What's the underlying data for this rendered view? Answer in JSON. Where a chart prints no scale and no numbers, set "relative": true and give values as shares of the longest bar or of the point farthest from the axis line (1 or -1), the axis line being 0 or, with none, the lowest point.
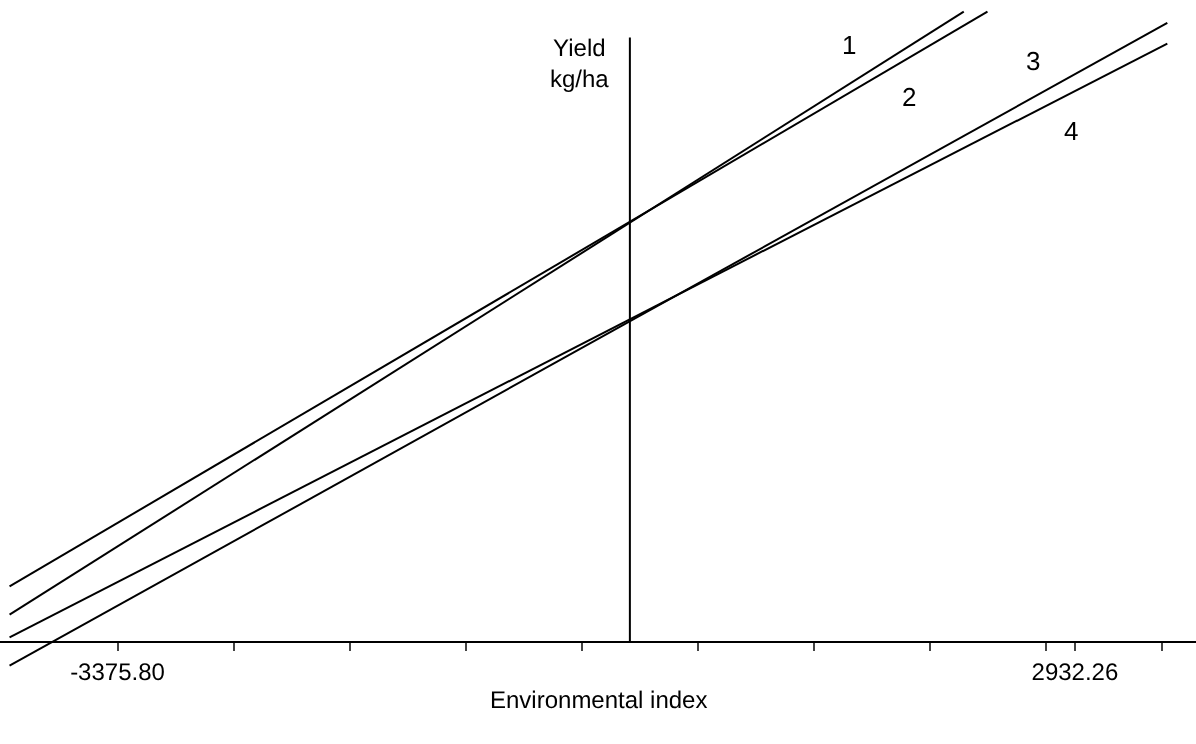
{
  "chart_data": {
    "type": "line",
    "relative": true,
    "xlabel": "Environmental index",
    "ylabel": "Yield\nkg/ha",
    "xlim": [
      -4150,
      3730
    ],
    "xticks": [
      {
        "value": -3375.8,
        "label": "-3375.80"
      },
      {
        "value": -2611,
        "label": null
      },
      {
        "value": -1846,
        "label": null
      },
      {
        "value": -1081,
        "label": null
      },
      {
        "value": -316,
        "label": null
      },
      {
        "value": 449,
        "label": null
      },
      {
        "value": 1214,
        "label": null
      },
      {
        "value": 1979,
        "label": null
      },
      {
        "value": 2744,
        "label": null
      },
      {
        "value": 2932.26,
        "label": "2932.26"
      },
      {
        "value": 3509,
        "label": null
      }
    ],
    "tick_labels": "x",
    "legend": false,
    "marker": "none",
    "line_style": "solid",
    "series": [
      {
        "name": "1",
        "color": "#000000",
        "x": [
          -4087,
          2200
        ],
        "values": [
          0.042,
          1.0
        ]
      },
      {
        "name": "2",
        "color": "#000000",
        "x": [
          -4087,
          2356
        ],
        "values": [
          0.087,
          1.0
        ]
      },
      {
        "name": "3",
        "color": "#000000",
        "x": [
          -4087,
          3541
        ],
        "values": [
          -0.039,
          0.982
        ]
      },
      {
        "name": "4",
        "color": "#000000",
        "x": [
          -4087,
          3541
        ],
        "values": [
          0.006,
          0.949
        ]
      }
    ]
  }
}
